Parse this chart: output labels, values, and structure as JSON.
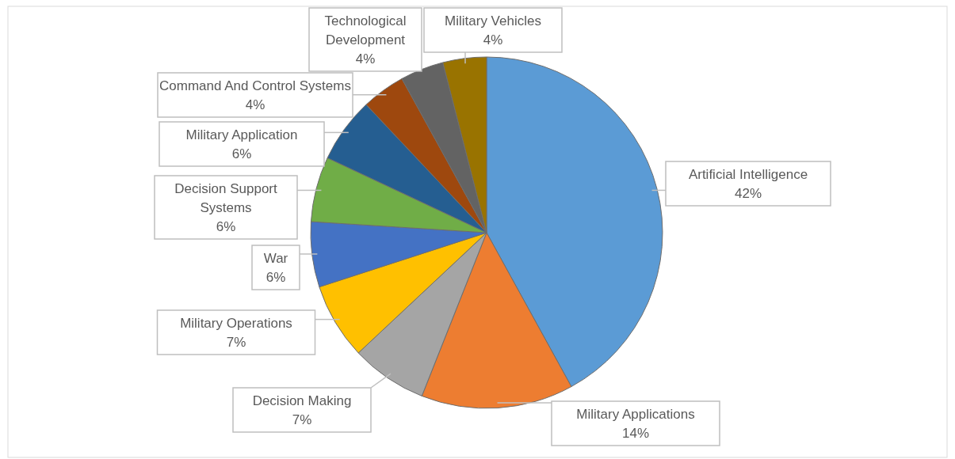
{
  "chart_data": {
    "type": "pie",
    "categories": [
      "Artificial Intelligence",
      "Military Applications",
      "Decision Making",
      "Military Operations",
      "War",
      "Decision Support Systems",
      "Military Application",
      "Command And Control Systems",
      "Technological Development",
      "Military Vehicles"
    ],
    "values": [
      42,
      14,
      7,
      7,
      6,
      6,
      6,
      4,
      4,
      4
    ],
    "colors": [
      "#5b9bd5",
      "#ed7d31",
      "#a5a5a5",
      "#ffc000",
      "#4472c4",
      "#70ad47",
      "#255e91",
      "#9e480e",
      "#636363",
      "#997300"
    ],
    "value_labels": [
      "42%",
      "14%",
      "7%",
      "7%",
      "6%",
      "6%",
      "6%",
      "4%",
      "4%",
      "4%"
    ],
    "legend": false
  }
}
